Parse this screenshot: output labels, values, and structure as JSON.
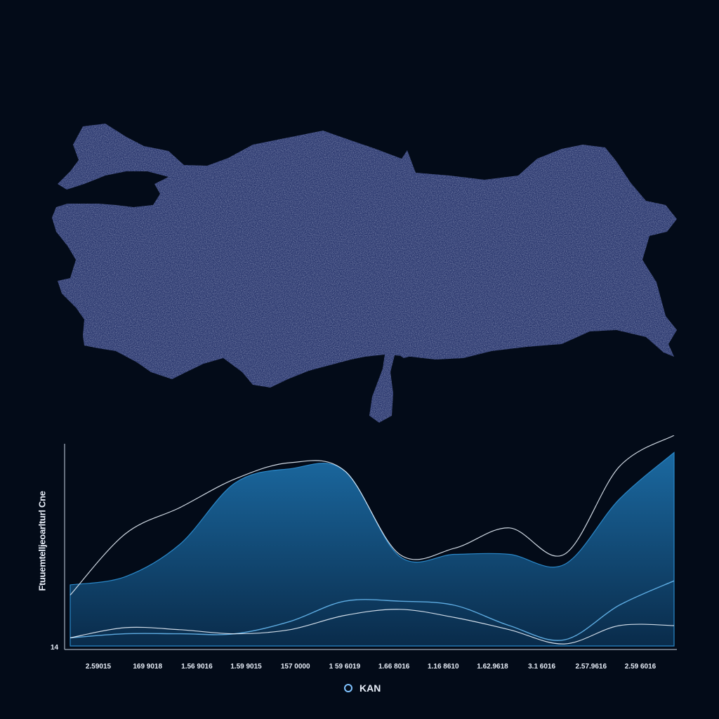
{
  "chart_data": {
    "type": "area",
    "title": "",
    "ylabel": "Ftuuemtelljeoarlturl Cne",
    "yticks": [
      "14"
    ],
    "categories": [
      "2.59015",
      "169 9018",
      "1.56 9016",
      "1.59 9015",
      "157 0000",
      "1 59 6019",
      "1.66 8016",
      "1.16 8610",
      "1.62.9618",
      "3.1 6016",
      "2.57.9616",
      "2.59 6016"
    ],
    "xlim": [
      0,
      11
    ],
    "ylim": [
      0,
      1
    ],
    "legend": {
      "placement": "bottom-center",
      "label": "KAN"
    },
    "grid": false,
    "colors": {
      "fill": "#0f4d7a",
      "fill_edge": "#2a88c9",
      "line_white": "#e6eef8",
      "line_blue": "#66b8f0"
    },
    "series": [
      {
        "style": "area",
        "values": [
          0.3,
          0.34,
          0.5,
          0.8,
          0.87,
          0.86,
          0.44,
          0.45,
          0.45,
          0.4,
          0.72,
          0.95
        ]
      },
      {
        "style": "white-line",
        "values": [
          0.25,
          0.55,
          0.68,
          0.82,
          0.9,
          0.86,
          0.45,
          0.48,
          0.58,
          0.45,
          0.88,
          1.2
        ]
      },
      {
        "style": "blue-line",
        "values": [
          0.04,
          0.06,
          0.06,
          0.06,
          0.12,
          0.22,
          0.22,
          0.2,
          0.1,
          0.03,
          0.2,
          0.32
        ]
      },
      {
        "style": "white-line-low",
        "values": [
          0.04,
          0.09,
          0.08,
          0.06,
          0.08,
          0.15,
          0.18,
          0.14,
          0.08,
          0.01,
          0.1,
          0.1
        ]
      }
    ]
  },
  "map": {
    "fill_color": "#2d3a70",
    "dot_color": "#c8d4f0"
  }
}
